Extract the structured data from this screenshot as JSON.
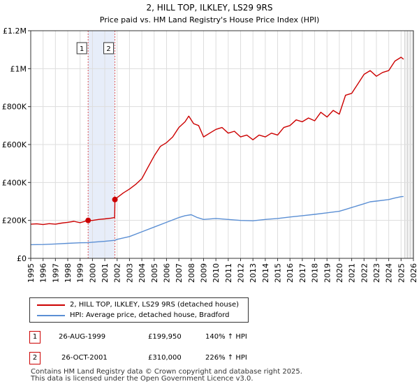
{
  "chart_data": {
    "type": "line",
    "title": "2, HILL TOP, ILKLEY, LS29 9RS",
    "subtitle": "Price paid vs. HM Land Registry's House Price Index (HPI)",
    "xlabel": "",
    "ylabel": "",
    "xlim": [
      1995,
      2026
    ],
    "ylim": [
      0,
      1200000
    ],
    "x_ticks": [
      1995,
      1996,
      1997,
      1998,
      1999,
      2000,
      2001,
      2002,
      2003,
      2004,
      2005,
      2006,
      2007,
      2008,
      2009,
      2010,
      2011,
      2012,
      2013,
      2014,
      2015,
      2016,
      2017,
      2018,
      2019,
      2020,
      2021,
      2022,
      2023,
      2024,
      2025,
      2026
    ],
    "y_ticks": [
      {
        "value": 0,
        "label": "£0"
      },
      {
        "value": 200000,
        "label": "£200K"
      },
      {
        "value": 400000,
        "label": "£400K"
      },
      {
        "value": 600000,
        "label": "£600K"
      },
      {
        "value": 800000,
        "label": "£800K"
      },
      {
        "value": 1000000,
        "label": "£1M"
      },
      {
        "value": 1200000,
        "label": "£1.2M"
      }
    ],
    "grid": true,
    "series": [
      {
        "name": "2, HILL TOP, ILKLEY, LS29 9RS (detached house)",
        "color": "#cc0000",
        "points": [
          [
            1995.0,
            180000
          ],
          [
            1995.5,
            182000
          ],
          [
            1996.0,
            178000
          ],
          [
            1996.5,
            183000
          ],
          [
            1997.0,
            180000
          ],
          [
            1997.5,
            186000
          ],
          [
            1998.0,
            190000
          ],
          [
            1998.5,
            195000
          ],
          [
            1999.0,
            188000
          ],
          [
            1999.65,
            199950
          ],
          [
            2000.0,
            200000
          ],
          [
            2000.5,
            205000
          ],
          [
            2001.0,
            208000
          ],
          [
            2001.5,
            212000
          ],
          [
            2001.8,
            215000
          ],
          [
            2001.82,
            310000
          ],
          [
            2002.0,
            320000
          ],
          [
            2002.5,
            345000
          ],
          [
            2003.0,
            365000
          ],
          [
            2003.5,
            390000
          ],
          [
            2004.0,
            420000
          ],
          [
            2004.5,
            480000
          ],
          [
            2005.0,
            540000
          ],
          [
            2005.5,
            590000
          ],
          [
            2006.0,
            610000
          ],
          [
            2006.5,
            640000
          ],
          [
            2007.0,
            690000
          ],
          [
            2007.5,
            720000
          ],
          [
            2007.8,
            750000
          ],
          [
            2008.2,
            710000
          ],
          [
            2008.6,
            700000
          ],
          [
            2009.0,
            640000
          ],
          [
            2009.5,
            660000
          ],
          [
            2010.0,
            680000
          ],
          [
            2010.5,
            690000
          ],
          [
            2011.0,
            660000
          ],
          [
            2011.5,
            670000
          ],
          [
            2012.0,
            640000
          ],
          [
            2012.5,
            650000
          ],
          [
            2013.0,
            625000
          ],
          [
            2013.5,
            650000
          ],
          [
            2014.0,
            640000
          ],
          [
            2014.5,
            660000
          ],
          [
            2015.0,
            650000
          ],
          [
            2015.5,
            690000
          ],
          [
            2016.0,
            700000
          ],
          [
            2016.5,
            730000
          ],
          [
            2017.0,
            720000
          ],
          [
            2017.5,
            740000
          ],
          [
            2018.0,
            725000
          ],
          [
            2018.5,
            770000
          ],
          [
            2019.0,
            745000
          ],
          [
            2019.5,
            780000
          ],
          [
            2020.0,
            760000
          ],
          [
            2020.5,
            860000
          ],
          [
            2021.0,
            870000
          ],
          [
            2021.5,
            920000
          ],
          [
            2022.0,
            970000
          ],
          [
            2022.5,
            990000
          ],
          [
            2023.0,
            960000
          ],
          [
            2023.5,
            980000
          ],
          [
            2024.0,
            990000
          ],
          [
            2024.5,
            1040000
          ],
          [
            2025.0,
            1060000
          ],
          [
            2025.2,
            1050000
          ]
        ]
      },
      {
        "name": "HPI: Average price, detached house, Bradford",
        "color": "#5b8fd4",
        "points": [
          [
            1995.0,
            72000
          ],
          [
            1996.0,
            73000
          ],
          [
            1997.0,
            76000
          ],
          [
            1998.0,
            79000
          ],
          [
            1999.0,
            82000
          ],
          [
            1999.65,
            83000
          ],
          [
            2000.0,
            85000
          ],
          [
            2001.0,
            90000
          ],
          [
            2001.82,
            95000
          ],
          [
            2002.0,
            100000
          ],
          [
            2003.0,
            115000
          ],
          [
            2004.0,
            140000
          ],
          [
            2005.0,
            165000
          ],
          [
            2006.0,
            190000
          ],
          [
            2007.0,
            215000
          ],
          [
            2007.5,
            225000
          ],
          [
            2008.0,
            230000
          ],
          [
            2008.5,
            215000
          ],
          [
            2009.0,
            205000
          ],
          [
            2010.0,
            210000
          ],
          [
            2011.0,
            205000
          ],
          [
            2012.0,
            200000
          ],
          [
            2013.0,
            198000
          ],
          [
            2014.0,
            205000
          ],
          [
            2015.0,
            210000
          ],
          [
            2016.0,
            218000
          ],
          [
            2017.0,
            225000
          ],
          [
            2018.0,
            232000
          ],
          [
            2019.0,
            240000
          ],
          [
            2020.0,
            248000
          ],
          [
            2020.5,
            258000
          ],
          [
            2021.0,
            268000
          ],
          [
            2022.0,
            288000
          ],
          [
            2022.5,
            298000
          ],
          [
            2023.0,
            302000
          ],
          [
            2024.0,
            310000
          ],
          [
            2024.5,
            318000
          ],
          [
            2025.0,
            325000
          ],
          [
            2025.2,
            326000
          ]
        ]
      }
    ],
    "annotations": [
      {
        "label": "1",
        "x": 1999.65,
        "y": 199950
      },
      {
        "label": "2",
        "x": 2001.82,
        "y": 310000
      }
    ],
    "shaded_ranges": [
      [
        1999.65,
        2001.82
      ]
    ],
    "forecast_start": 2025.3
  },
  "legend": {
    "items": [
      {
        "label": "2, HILL TOP, ILKLEY, LS29 9RS (detached house)",
        "color": "#cc0000"
      },
      {
        "label": "HPI: Average price, detached house, Bradford",
        "color": "#5b8fd4"
      }
    ]
  },
  "transactions": [
    {
      "num": "1",
      "date": "26-AUG-1999",
      "price": "£199,950",
      "hpi": "140% ↑ HPI"
    },
    {
      "num": "2",
      "date": "26-OCT-2001",
      "price": "£310,000",
      "hpi": "226% ↑ HPI"
    }
  ],
  "footer": {
    "line1": "Contains HM Land Registry data © Crown copyright and database right 2025.",
    "line2": "This data is licensed under the Open Government Licence v3.0."
  }
}
